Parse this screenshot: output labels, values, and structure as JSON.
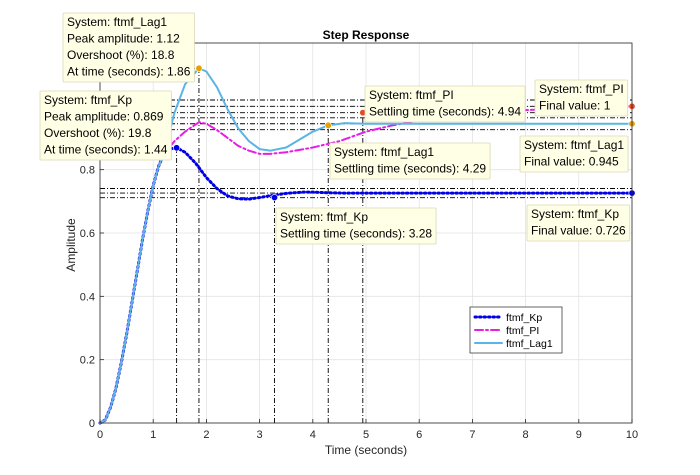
{
  "chart_data": {
    "type": "line",
    "title": "Step Response",
    "xlabel": "Time (seconds)",
    "ylabel": "Amplitude",
    "xlim": [
      0,
      10
    ],
    "ylim": [
      0,
      1.2
    ],
    "xticks": [
      "0",
      "1",
      "2",
      "3",
      "4",
      "5",
      "6",
      "7",
      "8",
      "9",
      "10"
    ],
    "yticks": [
      "0",
      "0.2",
      "0.4",
      "0.6",
      "0.8"
    ],
    "grid": true,
    "legend_position": "lower-right",
    "series": [
      {
        "name": "ftmf_Kp",
        "color": "#0000e6",
        "style": "dotted",
        "x": [
          0,
          0.1,
          0.2,
          0.3,
          0.4,
          0.5,
          0.6,
          0.7,
          0.8,
          0.9,
          1.0,
          1.1,
          1.2,
          1.3,
          1.44,
          1.6,
          1.8,
          2.0,
          2.2,
          2.4,
          2.6,
          2.8,
          3.0,
          3.2,
          3.5,
          3.8,
          4.0,
          4.3,
          4.6,
          5.0,
          5.5,
          6,
          7,
          8,
          9,
          10
        ],
        "y": [
          0,
          0.01,
          0.05,
          0.11,
          0.19,
          0.28,
          0.38,
          0.48,
          0.58,
          0.67,
          0.75,
          0.81,
          0.85,
          0.865,
          0.869,
          0.855,
          0.82,
          0.775,
          0.74,
          0.717,
          0.708,
          0.707,
          0.712,
          0.718,
          0.725,
          0.729,
          0.729,
          0.727,
          0.726,
          0.726,
          0.726,
          0.726,
          0.726,
          0.726,
          0.726,
          0.726
        ]
      },
      {
        "name": "ftmf_PI",
        "color": "#e61ee6",
        "style": "dashdot",
        "x": [
          0,
          0.1,
          0.2,
          0.3,
          0.4,
          0.5,
          0.6,
          0.7,
          0.8,
          0.9,
          1.0,
          1.1,
          1.2,
          1.4,
          1.6,
          1.86,
          2.0,
          2.2,
          2.4,
          2.6,
          2.8,
          3.0,
          3.2,
          3.5,
          4.0,
          4.5,
          5.0,
          5.5,
          6,
          7,
          8,
          9,
          10
        ],
        "y": [
          0,
          0.01,
          0.05,
          0.11,
          0.19,
          0.28,
          0.38,
          0.48,
          0.58,
          0.67,
          0.75,
          0.81,
          0.85,
          0.89,
          0.92,
          0.95,
          0.945,
          0.925,
          0.9,
          0.875,
          0.86,
          0.85,
          0.85,
          0.855,
          0.87,
          0.89,
          0.92,
          0.94,
          0.955,
          0.975,
          0.988,
          0.995,
          1.0
        ]
      },
      {
        "name": "ftmf_Lag1",
        "color": "#5ab4e6",
        "style": "solid",
        "x": [
          0,
          0.1,
          0.2,
          0.3,
          0.4,
          0.5,
          0.6,
          0.7,
          0.8,
          0.9,
          1.0,
          1.1,
          1.2,
          1.4,
          1.6,
          1.86,
          2.0,
          2.2,
          2.4,
          2.6,
          2.8,
          3.0,
          3.2,
          3.5,
          3.8,
          4.0,
          4.29,
          4.6,
          5.0,
          5.5,
          6,
          7,
          8,
          9,
          10
        ],
        "y": [
          0,
          0.01,
          0.05,
          0.11,
          0.19,
          0.28,
          0.38,
          0.48,
          0.58,
          0.67,
          0.75,
          0.81,
          0.85,
          0.98,
          1.07,
          1.12,
          1.11,
          1.06,
          0.99,
          0.93,
          0.89,
          0.865,
          0.86,
          0.87,
          0.9,
          0.92,
          0.94,
          0.947,
          0.945,
          0.945,
          0.945,
          0.945,
          0.945,
          0.945,
          0.945
        ]
      }
    ],
    "annotations": [
      {
        "series": "ftmf_Lag1",
        "kind": "peak",
        "x": 1.86,
        "y": 1.12,
        "lines": [
          "System: ftmf_Lag1",
          "Peak amplitude: 1.12",
          "Overshoot (%): 18.8",
          "At time (seconds): 1.86"
        ]
      },
      {
        "series": "ftmf_Kp",
        "kind": "peak",
        "x": 1.44,
        "y": 0.869,
        "lines": [
          "System: ftmf_Kp",
          "Peak amplitude: 0.869",
          "Overshoot (%): 19.8",
          "At time (seconds): 1.44"
        ]
      },
      {
        "series": "ftmf_PI",
        "kind": "settling",
        "x": 4.94,
        "y": 0.98,
        "lines": [
          "System: ftmf_PI",
          "Settling time (seconds): 4.94"
        ]
      },
      {
        "series": "ftmf_PI",
        "kind": "final",
        "x": 10,
        "y": 1.0,
        "lines": [
          "System: ftmf_PI",
          "Final value: 1"
        ]
      },
      {
        "series": "ftmf_Lag1",
        "kind": "settling",
        "x": 4.29,
        "y": 0.94,
        "lines": [
          "System: ftmf_Lag1",
          "Settling time (seconds): 4.29"
        ]
      },
      {
        "series": "ftmf_Lag1",
        "kind": "final",
        "x": 10,
        "y": 0.945,
        "lines": [
          "System: ftmf_Lag1",
          "Final value: 0.945"
        ]
      },
      {
        "series": "ftmf_Kp",
        "kind": "settling",
        "x": 3.28,
        "y": 0.712,
        "lines": [
          "System: ftmf_Kp",
          "Settling time (seconds): 3.28"
        ]
      },
      {
        "series": "ftmf_Kp",
        "kind": "final",
        "x": 10,
        "y": 0.726,
        "lines": [
          "System: ftmf_Kp",
          "Final value: 0.726"
        ]
      }
    ],
    "colors": {
      "marker_peak": "#e6a000",
      "marker_final": "#e64b1e",
      "marker_kp": "#0000e6",
      "tip_bg": "#ffffe6",
      "tip_border": "#dcd7b4"
    }
  }
}
